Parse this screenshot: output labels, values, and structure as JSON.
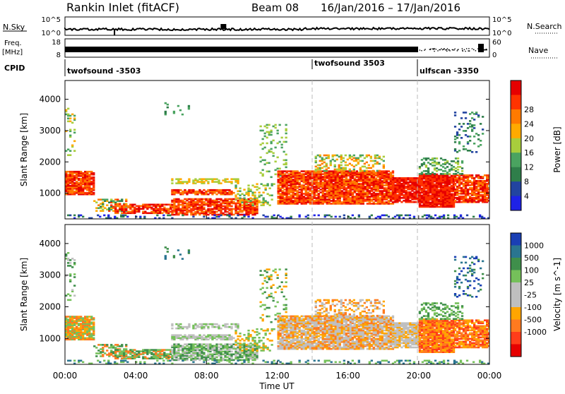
{
  "header": {
    "station": "Rankin Inlet (fitACF)",
    "beam": "Beam 08",
    "date_range": "16/Jan/2016 – 17/Jan/2016"
  },
  "panels": {
    "nsky": {
      "label": "N.Sky",
      "left_ticks": [
        "10^5",
        "10^0"
      ],
      "right_ticks": [
        "10^5",
        "10^0"
      ],
      "right_label": "N.Search"
    },
    "freq": {
      "label_top": "Freq.",
      "label_unit": "[MHz]",
      "left_ticks": [
        "18",
        "8"
      ],
      "right_ticks": [
        "60",
        "0"
      ],
      "right_label": "Nave"
    },
    "cpid": {
      "label": "CPID",
      "segments": [
        "twofsound -3503",
        "twofsound 3503",
        "ulfscan -3350"
      ]
    }
  },
  "colors": {
    "power_scale": [
      "#1e22e6",
      "#2244a0",
      "#2f7e4a",
      "#4aa360",
      "#a8cd3c",
      "#ffaa00",
      "#ff7a00",
      "#ff3300",
      "#e60000"
    ],
    "velocity_scale": [
      "#1a3fb4",
      "#2a7590",
      "#3f8f4b",
      "#75c05a",
      "#bfbfbf",
      "#bfbfbf",
      "#ffa500",
      "#ff7a1f",
      "#ff3d1a",
      "#e60000"
    ]
  },
  "chart_data": [
    {
      "type": "heatmap",
      "title": "Power",
      "ylabel": "Slant Range [km]",
      "xlabel": "",
      "x_ticks": [
        "00:00",
        "04:00",
        "08:00",
        "12:00",
        "16:00",
        "20:00",
        "00:00"
      ],
      "y_ticks": [
        "1000",
        "2000",
        "3000",
        "4000"
      ],
      "ylim": [
        180,
        4600
      ],
      "xlim_hours": [
        0,
        24
      ],
      "colorbar": {
        "label": "Power [dB]",
        "ticks": [
          "4",
          "8",
          "12",
          "16",
          "20",
          "24",
          "28"
        ]
      }
    },
    {
      "type": "heatmap",
      "title": "Velocity",
      "ylabel": "Slant Range [km]",
      "xlabel": "Time UT",
      "x_ticks": [
        "00:00",
        "04:00",
        "08:00",
        "12:00",
        "16:00",
        "20:00",
        "00:00"
      ],
      "y_ticks": [
        "1000",
        "2000",
        "3000",
        "4000"
      ],
      "ylim": [
        180,
        4600
      ],
      "xlim_hours": [
        0,
        24
      ],
      "colorbar": {
        "label": "Velocity [m s^-1]",
        "ticks": [
          "1000",
          "500",
          "100",
          "25",
          "-25",
          "-100",
          "-500",
          "-1000"
        ]
      }
    }
  ]
}
